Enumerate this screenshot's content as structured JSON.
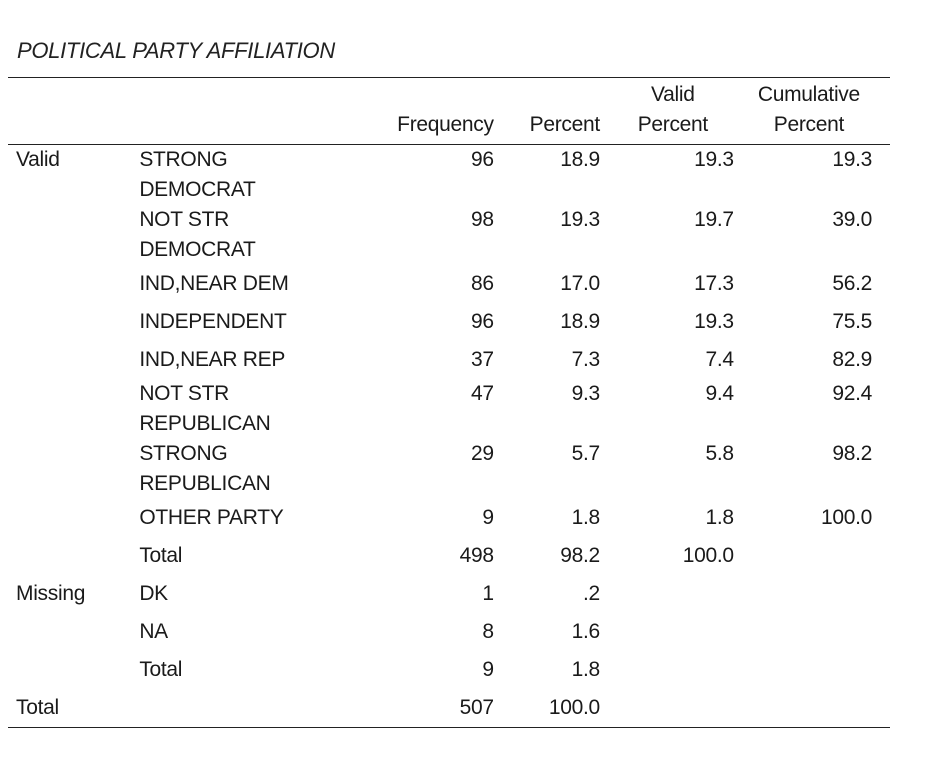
{
  "title": "POLITICAL PARTY AFFILIATION",
  "headers": {
    "frequency": "Frequency",
    "percent": "Percent",
    "valid_percent_line1": "Valid",
    "valid_percent_line2": "Percent",
    "cumulative_percent_line1": "Cumulative",
    "cumulative_percent_line2": "Percent"
  },
  "sections": [
    {
      "label": "Valid",
      "rows": [
        {
          "category_lines": [
            "STRONG",
            "DEMOCRAT"
          ],
          "frequency": "96",
          "percent": "18.9",
          "valid_percent": "19.3",
          "cumulative_percent": "19.3"
        },
        {
          "category_lines": [
            "NOT STR",
            "DEMOCRAT"
          ],
          "frequency": "98",
          "percent": "19.3",
          "valid_percent": "19.7",
          "cumulative_percent": "39.0"
        },
        {
          "category_lines": [
            "IND,NEAR DEM"
          ],
          "frequency": "86",
          "percent": "17.0",
          "valid_percent": "17.3",
          "cumulative_percent": "56.2"
        },
        {
          "category_lines": [
            "INDEPENDENT"
          ],
          "frequency": "96",
          "percent": "18.9",
          "valid_percent": "19.3",
          "cumulative_percent": "75.5"
        },
        {
          "category_lines": [
            "IND,NEAR REP"
          ],
          "frequency": "37",
          "percent": "7.3",
          "valid_percent": "7.4",
          "cumulative_percent": "82.9"
        },
        {
          "category_lines": [
            "NOT STR",
            "REPUBLICAN"
          ],
          "frequency": "47",
          "percent": "9.3",
          "valid_percent": "9.4",
          "cumulative_percent": "92.4"
        },
        {
          "category_lines": [
            "STRONG",
            "REPUBLICAN"
          ],
          "frequency": "29",
          "percent": "5.7",
          "valid_percent": "5.8",
          "cumulative_percent": "98.2"
        },
        {
          "category_lines": [
            "OTHER PARTY"
          ],
          "frequency": "9",
          "percent": "1.8",
          "valid_percent": "1.8",
          "cumulative_percent": "100.0"
        },
        {
          "category_lines": [
            "Total"
          ],
          "frequency": "498",
          "percent": "98.2",
          "valid_percent": "100.0",
          "cumulative_percent": ""
        }
      ]
    },
    {
      "label": "Missing",
      "rows": [
        {
          "category_lines": [
            "DK"
          ],
          "frequency": "1",
          "percent": ".2",
          "valid_percent": "",
          "cumulative_percent": ""
        },
        {
          "category_lines": [
            "NA"
          ],
          "frequency": "8",
          "percent": "1.6",
          "valid_percent": "",
          "cumulative_percent": ""
        },
        {
          "category_lines": [
            "Total"
          ],
          "frequency": "9",
          "percent": "1.8",
          "valid_percent": "",
          "cumulative_percent": ""
        }
      ]
    },
    {
      "label": "Total",
      "rows": [
        {
          "category_lines": [
            ""
          ],
          "frequency": "507",
          "percent": "100.0",
          "valid_percent": "",
          "cumulative_percent": ""
        }
      ]
    }
  ]
}
